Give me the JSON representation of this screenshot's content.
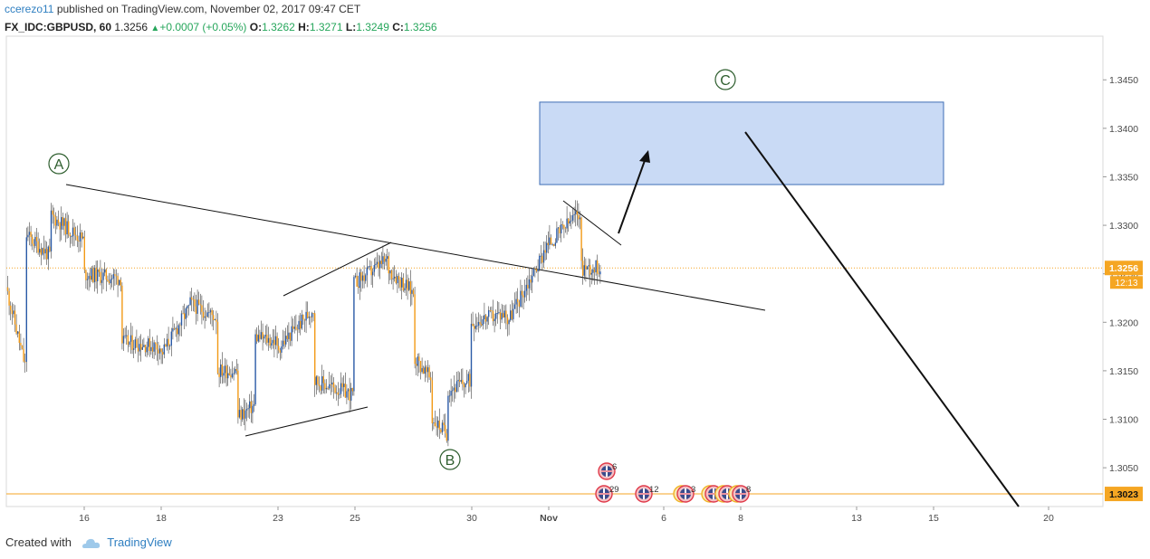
{
  "header": {
    "author": "ccerezo11",
    "published_text": "published on TradingView.com, November 02, 2017 09:47 CET"
  },
  "ohlc": {
    "symbol": "FX_IDC:GBPUSD, 60",
    "last": "1.3256",
    "change": "+0.0007 (+0.05%)",
    "o_label": "O:",
    "o_value": "1.3262",
    "h_label": "H:",
    "h_value": "1.3271",
    "l_label": "L:",
    "l_value": "1.3249",
    "c_label": "C:",
    "c_value": "1.3256"
  },
  "chart_data": {
    "type": "candlestick",
    "instrument": "FX_IDC:GBPUSD",
    "timeframe": "60",
    "x_ticks": [
      "16",
      "18",
      "23",
      "25",
      "30",
      "Nov",
      "6",
      "8",
      "13",
      "15",
      "20"
    ],
    "y_ticks": [
      "1.3050",
      "1.3100",
      "1.3150",
      "1.3200",
      "1.3250",
      "1.3300",
      "1.3350",
      "1.3400",
      "1.3450"
    ],
    "ylim": [
      1.301,
      1.3495
    ],
    "price_line": {
      "value": 1.3256,
      "label": "1.3256",
      "countdown": "12:13",
      "color": "#f5a623"
    },
    "level_line": {
      "value": 1.3023,
      "label": "1.3023",
      "color": "#f5a623"
    },
    "candle_colors": {
      "up": "#2a5aa6",
      "down": "#f29a16"
    },
    "path_points": [
      [
        "13",
        1.3222
      ],
      [
        "13",
        1.3262
      ],
      [
        "13",
        1.324
      ],
      [
        "14",
        1.315
      ],
      [
        "14",
        1.324
      ],
      [
        "14",
        1.329
      ],
      [
        "15",
        1.3268
      ],
      [
        "15",
        1.331
      ],
      [
        "16",
        1.3285
      ],
      [
        "16",
        1.329
      ],
      [
        "16",
        1.325
      ],
      [
        "17",
        1.3245
      ],
      [
        "17",
        1.3275
      ],
      [
        "17",
        1.318
      ],
      [
        "18",
        1.3175
      ],
      [
        "18",
        1.3185
      ],
      [
        "18",
        1.3165
      ],
      [
        "19",
        1.3215
      ],
      [
        "19",
        1.3178
      ],
      [
        "19",
        1.322
      ],
      [
        "20",
        1.3205
      ],
      [
        "20",
        1.3155
      ],
      [
        "20",
        1.315
      ],
      [
        "21",
        1.315
      ],
      [
        "21",
        1.3102
      ],
      [
        "22",
        1.3115
      ],
      [
        "22",
        1.319
      ],
      [
        "22",
        1.3185
      ],
      [
        "23",
        1.318
      ],
      [
        "23",
        1.3215
      ],
      [
        "23",
        1.3172
      ],
      [
        "24",
        1.3215
      ],
      [
        "24",
        1.3195
      ],
      [
        "24",
        1.314
      ],
      [
        "25",
        1.3125
      ],
      [
        "25",
        1.314
      ],
      [
        "25",
        1.324
      ],
      [
        "26",
        1.3265
      ],
      [
        "26",
        1.3275
      ],
      [
        "26",
        1.3255
      ],
      [
        "27",
        1.323
      ],
      [
        "27",
        1.32
      ],
      [
        "27",
        1.3165
      ],
      [
        "28",
        1.314
      ],
      [
        "28",
        1.3135
      ],
      [
        "28",
        1.31
      ],
      [
        "29",
        1.3085
      ],
      [
        "29",
        1.311
      ],
      [
        "29",
        1.313
      ],
      [
        "30",
        1.314
      ],
      [
        "30",
        1.3175
      ],
      [
        "30",
        1.32
      ],
      [
        "31",
        1.321
      ],
      [
        "31",
        1.3205
      ],
      [
        "31",
        1.32
      ],
      [
        "Nov 1",
        1.327
      ],
      [
        "Nov 1",
        1.329
      ],
      [
        "Nov 1",
        1.3285
      ],
      [
        "Nov 1",
        1.3275
      ],
      [
        "Nov 2",
        1.3315
      ],
      [
        "Nov 2",
        1.3275
      ],
      [
        "Nov 2",
        1.3245
      ],
      [
        "Nov 2",
        1.3295
      ],
      [
        "Nov 2",
        1.3285
      ],
      [
        "Nov 2",
        1.3256
      ]
    ],
    "annotations": {
      "wave_labels": [
        "A",
        "B",
        "C"
      ],
      "target_box": {
        "price_low": 1.3342,
        "price_high": 1.3427
      },
      "event_markers": [
        "6",
        "29",
        "12",
        "3",
        "2",
        "2",
        "8"
      ]
    },
    "grid": false
  },
  "footer": {
    "created_with": "Created with",
    "brand": "TradingView"
  }
}
